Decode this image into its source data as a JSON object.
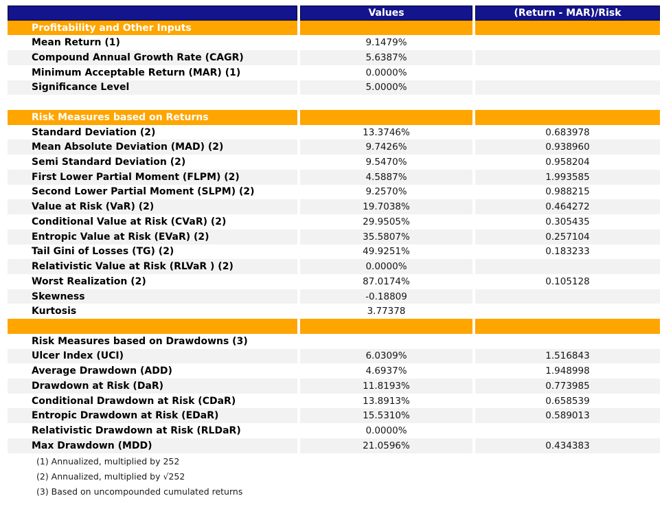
{
  "colors": {
    "header_bg": "#14148c",
    "section_bg": "#ffa500",
    "stripe_bg": "#f2f2f2",
    "header_text": "#ffffff",
    "body_text": "#000000"
  },
  "chart_data": {
    "type": "table",
    "title": "Portfolio risk metrics table",
    "columns": [
      "",
      "Values",
      "(Return - MAR)/Risk"
    ],
    "rows": [
      {
        "kind": "section",
        "label": "Profitability and Other Inputs",
        "value": "",
        "ratio": ""
      },
      {
        "kind": "data",
        "label": "Mean Return (1)",
        "value": "9.1479%",
        "ratio": ""
      },
      {
        "kind": "data",
        "label": "Compound Annual Growth Rate (CAGR)",
        "value": "5.6387%",
        "ratio": ""
      },
      {
        "kind": "data",
        "label": "Minimum Acceptable Return (MAR) (1)",
        "value": "0.0000%",
        "ratio": ""
      },
      {
        "kind": "data",
        "label": "Significance Level",
        "value": "5.0000%",
        "ratio": ""
      },
      {
        "kind": "blank",
        "label": "",
        "value": "",
        "ratio": ""
      },
      {
        "kind": "section",
        "label": "Risk Measures based on Returns",
        "value": "",
        "ratio": ""
      },
      {
        "kind": "data",
        "label": "Standard Deviation (2)",
        "value": "13.3746%",
        "ratio": "0.683978"
      },
      {
        "kind": "data",
        "label": "Mean Absolute Deviation (MAD) (2)",
        "value": "9.7426%",
        "ratio": "0.938960"
      },
      {
        "kind": "data",
        "label": "Semi Standard Deviation (2)",
        "value": "9.5470%",
        "ratio": "0.958204"
      },
      {
        "kind": "data",
        "label": "First Lower Partial Moment (FLPM) (2)",
        "value": "4.5887%",
        "ratio": "1.993585"
      },
      {
        "kind": "data",
        "label": "Second Lower Partial Moment (SLPM) (2)",
        "value": "9.2570%",
        "ratio": "0.988215"
      },
      {
        "kind": "data",
        "label": "Value at Risk (VaR) (2)",
        "value": "19.7038%",
        "ratio": "0.464272"
      },
      {
        "kind": "data",
        "label": "Conditional Value at Risk (CVaR) (2)",
        "value": "29.9505%",
        "ratio": "0.305435"
      },
      {
        "kind": "data",
        "label": "Entropic Value at Risk (EVaR) (2)",
        "value": "35.5807%",
        "ratio": "0.257104"
      },
      {
        "kind": "data",
        "label": "Tail Gini of Losses (TG) (2)",
        "value": "49.9251%",
        "ratio": "0.183233"
      },
      {
        "kind": "data",
        "label": "Relativistic Value at Risk (RLVaR ) (2)",
        "value": "0.0000%",
        "ratio": ""
      },
      {
        "kind": "data",
        "label": "Worst Realization (2)",
        "value": "87.0174%",
        "ratio": "0.105128"
      },
      {
        "kind": "data",
        "label": "Skewness",
        "value": "-0.18809",
        "ratio": ""
      },
      {
        "kind": "data",
        "label": "Kurtosis",
        "value": "3.77378",
        "ratio": ""
      },
      {
        "kind": "section",
        "label": "",
        "value": "",
        "ratio": ""
      },
      {
        "kind": "subtitle",
        "label": "Risk Measures based on Drawdowns (3)",
        "value": "",
        "ratio": ""
      },
      {
        "kind": "data",
        "label": "Ulcer Index (UCI)",
        "value": "6.0309%",
        "ratio": "1.516843"
      },
      {
        "kind": "data",
        "label": "Average Drawdown (ADD)",
        "value": "4.6937%",
        "ratio": "1.948998"
      },
      {
        "kind": "data",
        "label": "Drawdown at Risk (DaR)",
        "value": "11.8193%",
        "ratio": "0.773985"
      },
      {
        "kind": "data",
        "label": "Conditional Drawdown at Risk (CDaR)",
        "value": "13.8913%",
        "ratio": "0.658539"
      },
      {
        "kind": "data",
        "label": "Entropic Drawdown at Risk (EDaR)",
        "value": "15.5310%",
        "ratio": "0.589013"
      },
      {
        "kind": "data",
        "label": "Relativistic Drawdown at Risk (RLDaR)",
        "value": "0.0000%",
        "ratio": ""
      },
      {
        "kind": "data",
        "label": "Max Drawdown (MDD)",
        "value": "21.0596%",
        "ratio": "0.434383"
      }
    ],
    "footnotes": [
      "(1) Annualized, multiplied by 252",
      "(2) Annualized, multiplied by √252",
      "(3) Based on uncompounded cumulated returns"
    ]
  }
}
